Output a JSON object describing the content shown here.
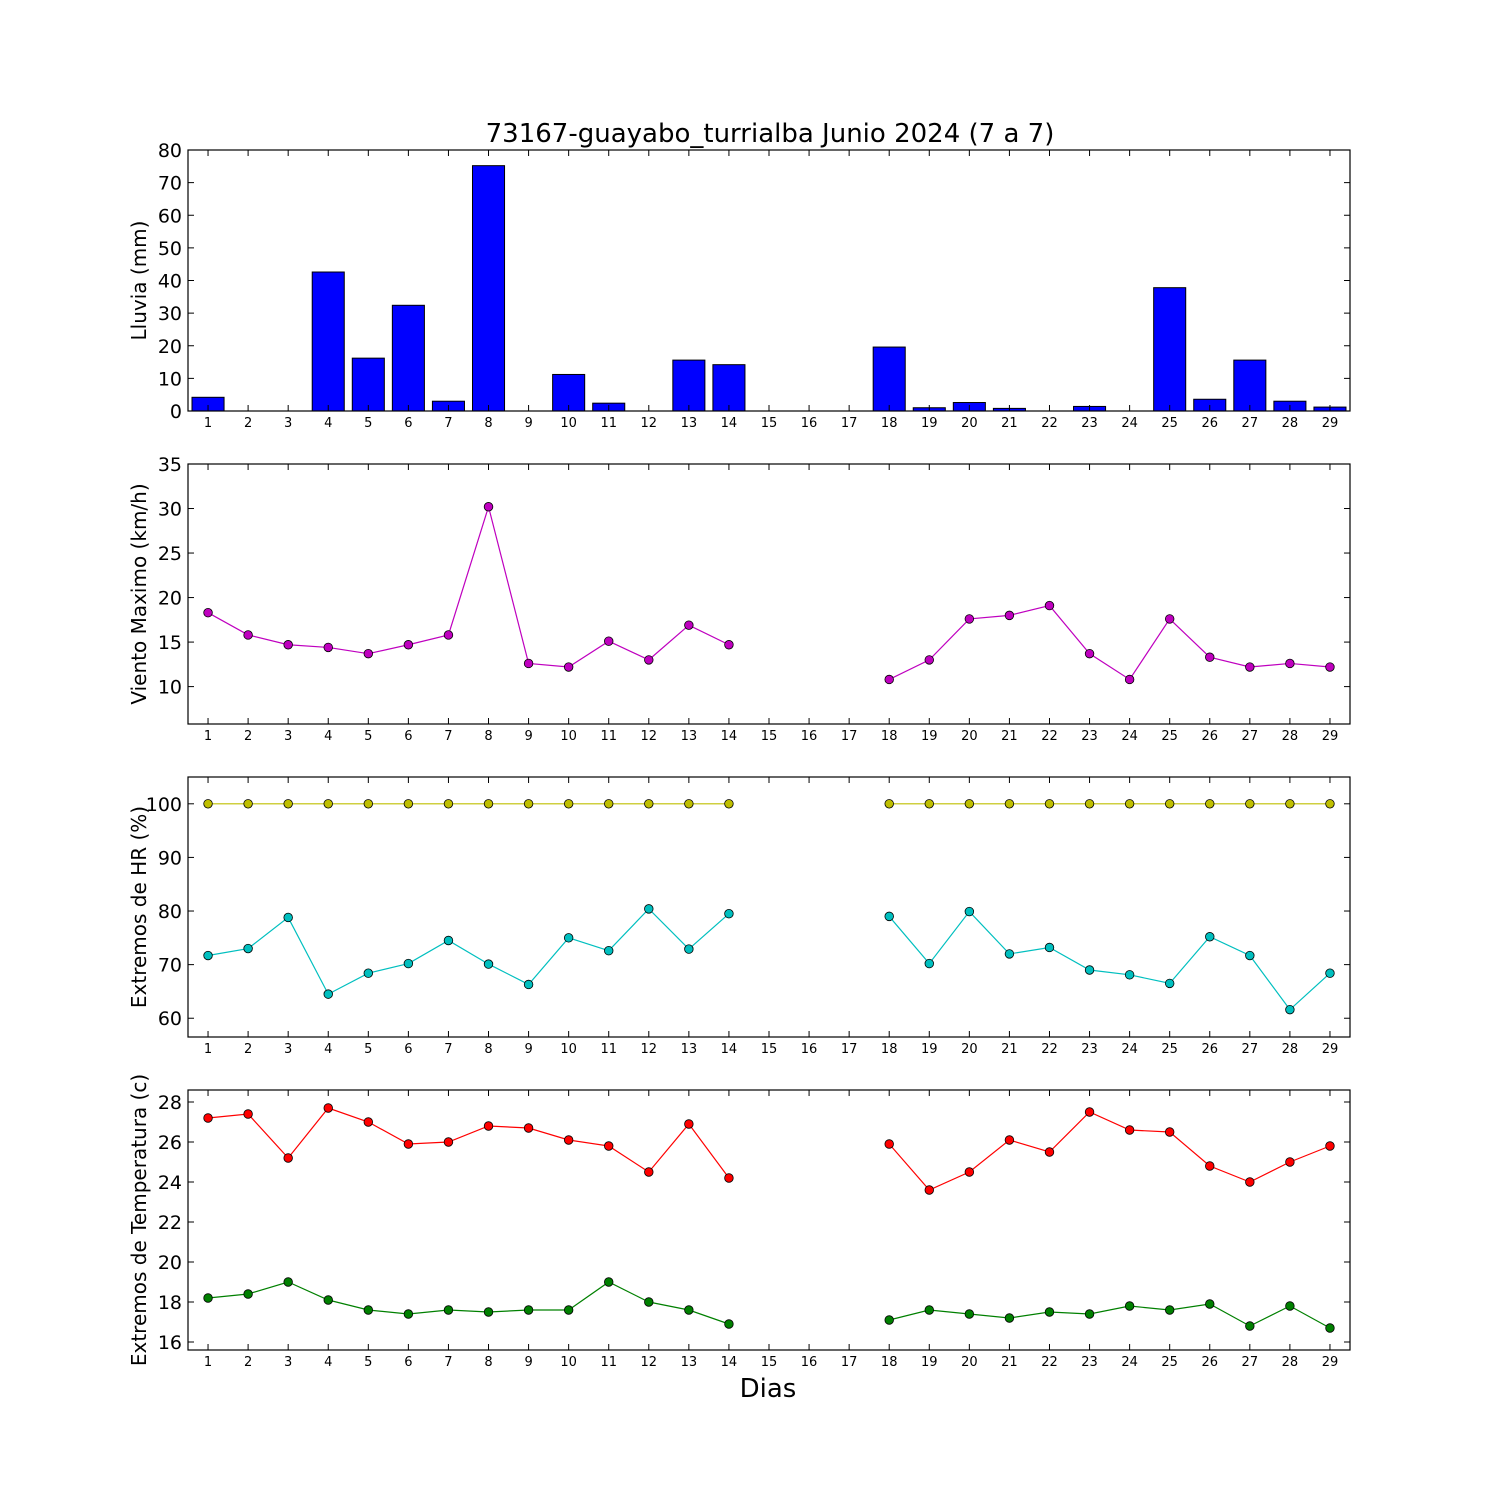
{
  "title": "73167-guayabo_turrialba Junio 2024  (7 a 7)",
  "xlabel": "Dias",
  "days": [
    1,
    2,
    3,
    4,
    5,
    6,
    7,
    8,
    9,
    10,
    11,
    12,
    13,
    14,
    15,
    16,
    17,
    18,
    19,
    20,
    21,
    22,
    23,
    24,
    25,
    26,
    27,
    28,
    29
  ],
  "chart_data": [
    {
      "type": "bar",
      "ylabel": "Lluvia (mm)",
      "ylim": [
        0,
        80
      ],
      "yticks": [
        0,
        10,
        20,
        30,
        40,
        50,
        60,
        70,
        80
      ],
      "categories": [
        1,
        2,
        3,
        4,
        5,
        6,
        7,
        8,
        9,
        10,
        11,
        12,
        13,
        14,
        15,
        16,
        17,
        18,
        19,
        20,
        21,
        22,
        23,
        24,
        25,
        26,
        27,
        28,
        29
      ],
      "values": [
        4.2,
        0,
        0,
        42.6,
        16.2,
        32.4,
        3,
        75.2,
        0,
        11.2,
        2.4,
        0,
        15.6,
        14.2,
        0,
        0,
        0,
        19.6,
        1,
        2.6,
        0.8,
        0,
        1.4,
        0,
        37.8,
        3.6,
        15.6,
        3,
        1.2
      ],
      "color": "#0000ff",
      "grid": false
    },
    {
      "type": "line",
      "ylabel": "Viento Maximo (km/h)",
      "ylim": [
        5.8,
        35
      ],
      "yticks": [
        10,
        15,
        20,
        25,
        30,
        35
      ],
      "series": [
        {
          "color": "#bf00bf",
          "values": [
            18.3,
            15.8,
            14.7,
            14.4,
            13.7,
            14.7,
            15.8,
            30.2,
            12.6,
            12.2,
            15.1,
            13.0,
            16.9,
            14.7,
            null,
            null,
            null,
            10.8,
            13.0,
            17.6,
            18.0,
            19.1,
            13.7,
            10.8,
            17.6,
            13.3,
            12.2,
            12.6,
            12.2
          ]
        }
      ],
      "grid": false
    },
    {
      "type": "line",
      "ylabel": "Extremos de HR (%)",
      "ylim": [
        56.5,
        105
      ],
      "yticks": [
        60,
        70,
        80,
        90,
        100
      ],
      "series": [
        {
          "color": "#bfbf00",
          "values": [
            100,
            100,
            100,
            100,
            100,
            100,
            100,
            100,
            100,
            100,
            100,
            100,
            100,
            100,
            null,
            null,
            null,
            100,
            100,
            100,
            100,
            100,
            100,
            100,
            100,
            100,
            100,
            100,
            100
          ]
        },
        {
          "color": "#00bfbf",
          "values": [
            71.7,
            73.0,
            78.8,
            64.5,
            68.4,
            70.2,
            74.5,
            70.1,
            66.3,
            75.0,
            72.6,
            80.4,
            72.9,
            79.5,
            null,
            null,
            null,
            79.0,
            70.2,
            79.9,
            72.0,
            73.2,
            69.0,
            68.1,
            66.5,
            75.2,
            71.7,
            61.6,
            68.4
          ]
        }
      ],
      "grid": false
    },
    {
      "type": "line",
      "ylabel": "Extremos de Temperatura (c)",
      "ylim": [
        15.6,
        28.6
      ],
      "yticks": [
        16,
        18,
        20,
        22,
        24,
        26,
        28
      ],
      "series": [
        {
          "color": "#ff0000",
          "values": [
            27.2,
            27.4,
            25.2,
            27.7,
            27.0,
            25.9,
            26.0,
            26.8,
            26.7,
            26.1,
            25.8,
            24.5,
            26.9,
            24.2,
            null,
            null,
            null,
            25.9,
            23.6,
            24.5,
            26.1,
            25.5,
            27.5,
            26.6,
            26.5,
            24.8,
            24.0,
            25.0,
            25.8
          ]
        },
        {
          "color": "#008000",
          "values": [
            18.2,
            18.4,
            19.0,
            18.1,
            17.6,
            17.4,
            17.6,
            17.5,
            17.6,
            17.6,
            19.0,
            18.0,
            17.6,
            16.9,
            null,
            null,
            null,
            17.1,
            17.6,
            17.4,
            17.2,
            17.5,
            17.4,
            17.8,
            17.6,
            17.9,
            16.8,
            17.8,
            16.7
          ]
        }
      ],
      "grid": false
    }
  ]
}
